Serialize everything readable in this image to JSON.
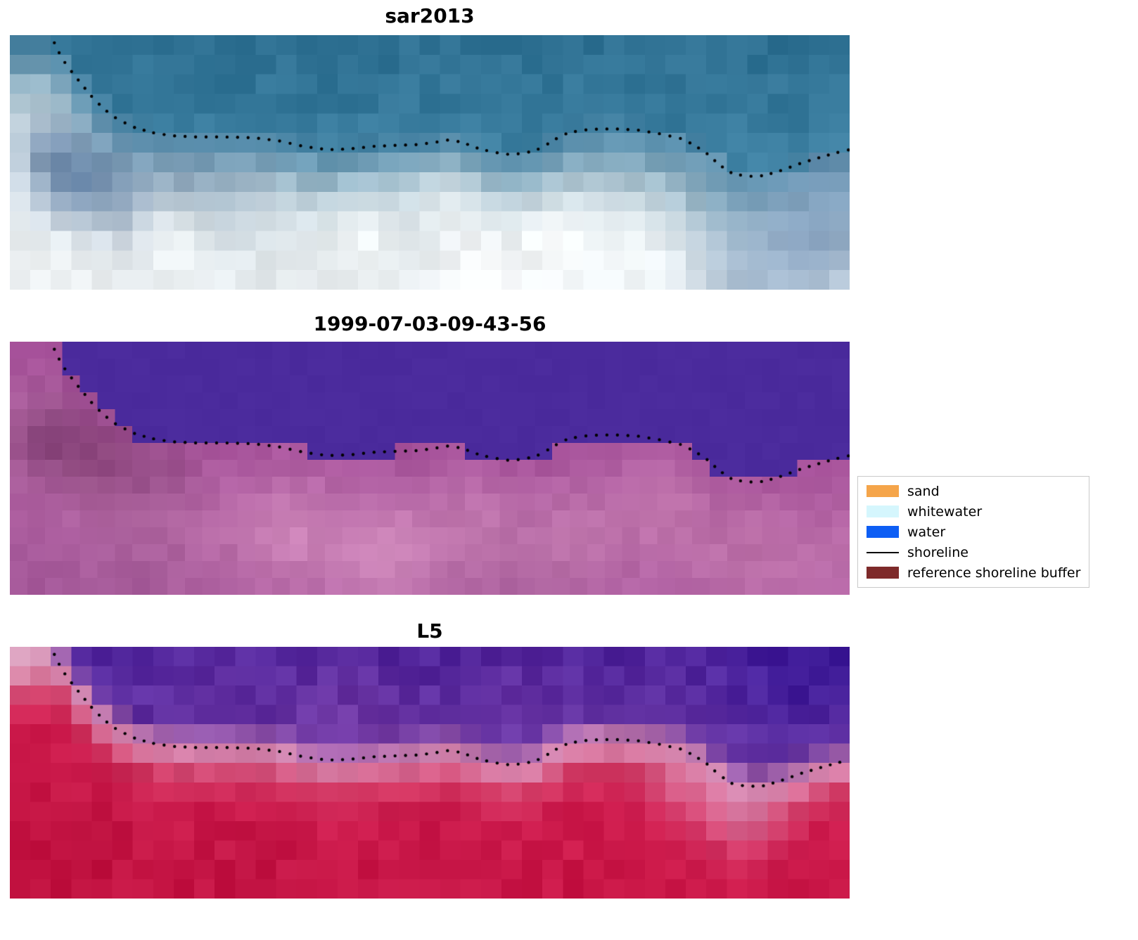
{
  "panels": [
    {
      "id": "p1",
      "title": "sar2013",
      "render": {
        "seed": 7,
        "grid": [
          41,
          13
        ],
        "blend": 0.04,
        "sea": {
          "noise": 9,
          "stops": [
            [
              0,
              "#2e7092"
            ],
            [
              0.3,
              "#35789a"
            ],
            [
              0.5,
              "#3f82a4"
            ]
          ]
        },
        "land": {
          "noise": 10,
          "stops": [
            [
              0,
              "#4a85a5"
            ],
            [
              0.08,
              "#6b9ab4"
            ],
            [
              0.18,
              "#9dbac9"
            ],
            [
              0.32,
              "#c7d6de"
            ],
            [
              0.5,
              "#e3eaee"
            ],
            [
              0.85,
              "#edf1f3"
            ]
          ]
        },
        "blobs": [
          [
            0.08,
            0.58,
            0.05,
            "#4f739c",
            0.85
          ],
          [
            0.14,
            0.66,
            0.05,
            "#5a7ba2",
            0.7
          ],
          [
            0.21,
            0.57,
            0.04,
            "#62809f",
            0.55
          ],
          [
            0.05,
            0.46,
            0.035,
            "#54749b",
            0.6
          ],
          [
            0.28,
            0.64,
            0.045,
            "#6d8aa9",
            0.45
          ],
          [
            0.19,
            0.8,
            0.06,
            "#f2f5f6",
            0.8
          ],
          [
            0.3,
            0.72,
            0.05,
            "#e8eef0",
            0.55
          ],
          [
            0.42,
            0.82,
            0.065,
            "#f7fafa",
            0.85
          ],
          [
            0.52,
            0.67,
            0.05,
            "#f3f8f9",
            0.7
          ],
          [
            0.56,
            0.9,
            0.06,
            "#ffffff",
            0.85
          ],
          [
            0.645,
            0.82,
            0.06,
            "#fcfdfd",
            0.85
          ],
          [
            0.735,
            0.86,
            0.055,
            "#f6fafb",
            0.75
          ],
          [
            0.08,
            0.92,
            0.07,
            "#eff3f4",
            0.65
          ],
          [
            0.35,
            0.94,
            0.06,
            "#eaeff1",
            0.55
          ],
          [
            0.95,
            0.8,
            0.08,
            "#7f9cbd",
            0.8
          ],
          [
            0.99,
            0.58,
            0.05,
            "#6f94b4",
            0.6
          ],
          [
            0.88,
            0.95,
            0.06,
            "#92abc6",
            0.55
          ],
          [
            0.84,
            0.56,
            0.05,
            "#7fa6bd",
            0.5
          ]
        ]
      }
    },
    {
      "id": "p2",
      "title": "1999-07-03-09-43-56",
      "render": {
        "seed": 21,
        "grid": [
          48,
          15
        ],
        "blend": 0,
        "sea": {
          "noise": 2,
          "stops": [
            [
              0,
              "#4b2b9d"
            ],
            [
              1,
              "#4b2b9d"
            ]
          ]
        },
        "land": {
          "noise": 7,
          "stops": [
            [
              0,
              "#a7529b"
            ],
            [
              0.15,
              "#b05fa2"
            ],
            [
              0.35,
              "#bb6ea9"
            ],
            [
              0.6,
              "#b263a4"
            ],
            [
              0.9,
              "#a85b9c"
            ]
          ]
        },
        "blobs": [
          [
            0.05,
            0.38,
            0.05,
            "#7b3a70",
            0.8
          ],
          [
            0.11,
            0.47,
            0.05,
            "#823f72",
            0.7
          ],
          [
            0.18,
            0.53,
            0.045,
            "#8d4a7e",
            0.55
          ],
          [
            0.34,
            0.75,
            0.06,
            "#d38cbe",
            0.7
          ],
          [
            0.45,
            0.85,
            0.06,
            "#d994c4",
            0.75
          ],
          [
            0.56,
            0.73,
            0.055,
            "#d088ba",
            0.6
          ],
          [
            0.67,
            0.81,
            0.05,
            "#cc84b6",
            0.55
          ],
          [
            0.78,
            0.63,
            0.05,
            "#c87eb0",
            0.5
          ],
          [
            0.88,
            0.75,
            0.055,
            "#c278aa",
            0.5
          ],
          [
            0.15,
            0.9,
            0.08,
            "#9b5590",
            0.5
          ],
          [
            0.6,
            0.96,
            0.09,
            "#a05b94",
            0.4
          ]
        ]
      }
    },
    {
      "id": "p3",
      "title": "L5",
      "render": {
        "seed": 42,
        "grid": [
          41,
          13
        ],
        "blend": 0.1,
        "sea": {
          "noise": 13,
          "stops": [
            [
              0,
              "#50259c"
            ],
            [
              0.2,
              "#5b2c9f"
            ],
            [
              0.4,
              "#6936a3"
            ]
          ]
        },
        "land": {
          "noise": 9,
          "stops": [
            [
              0,
              "#d489b4"
            ],
            [
              0.05,
              "#d87aa2"
            ],
            [
              0.12,
              "#d33b66"
            ],
            [
              0.25,
              "#cf1d4f"
            ],
            [
              0.6,
              "#c81545"
            ],
            [
              1,
              "#c21240"
            ]
          ]
        },
        "blobs": [
          [
            0.93,
            0.1,
            0.09,
            "#3f1c9c",
            0.75
          ],
          [
            0.99,
            0.03,
            0.05,
            "#371693",
            0.7
          ],
          [
            0.4,
            0.28,
            0.07,
            "#7b3ba4",
            0.45
          ],
          [
            0.6,
            0.2,
            0.06,
            "#6d34a4",
            0.4
          ],
          [
            0.25,
            0.17,
            0.06,
            "#6c35a6",
            0.4
          ],
          [
            0.012,
            0.03,
            0.04,
            "#dfa8c4",
            0.9
          ],
          [
            0.1,
            0.75,
            0.08,
            "#b80f3c",
            0.55
          ],
          [
            0.28,
            0.88,
            0.08,
            "#bb1140",
            0.5
          ],
          [
            0.5,
            0.97,
            0.1,
            "#c01243",
            0.45
          ],
          [
            0.87,
            0.64,
            0.05,
            "#dc93ba",
            0.65
          ],
          [
            0.8,
            0.53,
            0.04,
            "#da8fb6",
            0.5
          ]
        ]
      }
    }
  ],
  "legend": {
    "items": [
      {
        "label": "sand",
        "type": "patch",
        "color": "#f5a54a"
      },
      {
        "label": "whitewater",
        "type": "patch",
        "color": "#d5f6fd"
      },
      {
        "label": "water",
        "type": "patch",
        "color": "#0d5ef4"
      },
      {
        "label": "shoreline",
        "type": "line",
        "color": "#000000"
      },
      {
        "label": "reference shoreline buffer",
        "type": "patch",
        "color": "#7e2a2a"
      }
    ]
  },
  "chart_data": {
    "type": "heatmap",
    "axes": "off",
    "panel_titles": [
      "sar2013",
      "1999-07-03-09-43-56",
      "L5"
    ],
    "legend_entries": [
      "sand",
      "whitewater",
      "water",
      "shoreline",
      "reference shoreline buffer"
    ],
    "shoreline_style": {
      "marker": "dot",
      "color": "#000000"
    },
    "shoreline_normalized": [
      [
        0.053,
        0.03
      ],
      [
        0.058,
        0.065
      ],
      [
        0.065,
        0.105
      ],
      [
        0.075,
        0.15
      ],
      [
        0.086,
        0.195
      ],
      [
        0.098,
        0.243
      ],
      [
        0.112,
        0.29
      ],
      [
        0.128,
        0.33
      ],
      [
        0.148,
        0.362
      ],
      [
        0.168,
        0.382
      ],
      [
        0.192,
        0.395
      ],
      [
        0.22,
        0.4
      ],
      [
        0.255,
        0.4
      ],
      [
        0.29,
        0.403
      ],
      [
        0.32,
        0.415
      ],
      [
        0.35,
        0.437
      ],
      [
        0.378,
        0.45
      ],
      [
        0.405,
        0.447
      ],
      [
        0.432,
        0.437
      ],
      [
        0.46,
        0.433
      ],
      [
        0.487,
        0.43
      ],
      [
        0.508,
        0.42
      ],
      [
        0.522,
        0.412
      ],
      [
        0.538,
        0.42
      ],
      [
        0.555,
        0.442
      ],
      [
        0.573,
        0.458
      ],
      [
        0.592,
        0.468
      ],
      [
        0.612,
        0.465
      ],
      [
        0.632,
        0.445
      ],
      [
        0.65,
        0.408
      ],
      [
        0.665,
        0.383
      ],
      [
        0.69,
        0.37
      ],
      [
        0.718,
        0.368
      ],
      [
        0.748,
        0.373
      ],
      [
        0.775,
        0.388
      ],
      [
        0.8,
        0.407
      ],
      [
        0.815,
        0.432
      ],
      [
        0.83,
        0.465
      ],
      [
        0.845,
        0.51
      ],
      [
        0.86,
        0.543
      ],
      [
        0.878,
        0.555
      ],
      [
        0.898,
        0.552
      ],
      [
        0.918,
        0.532
      ],
      [
        0.942,
        0.503
      ],
      [
        0.968,
        0.477
      ],
      [
        0.99,
        0.457
      ],
      [
        1.0,
        0.45
      ]
    ]
  }
}
